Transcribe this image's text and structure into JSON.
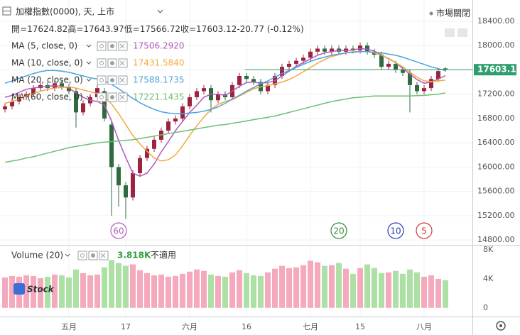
{
  "chart_data": [
    {
      "type": "candlestick",
      "title": "加權指數(0000), 天, 上市",
      "status": "市場關閉",
      "ohlc_labels": [
        "開=",
        "高=",
        "低=",
        "收="
      ],
      "change": "-20.77 (-0.12%)",
      "categories": [
        null,
        null,
        null,
        null,
        null,
        null,
        null,
        null,
        null,
        "五月",
        null,
        null,
        null,
        null,
        null,
        null,
        null,
        "17",
        null,
        null,
        null,
        null,
        null,
        null,
        null,
        null,
        "六月",
        null,
        null,
        null,
        null,
        null,
        null,
        null,
        "16",
        null,
        null,
        null,
        null,
        null,
        null,
        null,
        null,
        "七月",
        null,
        null,
        null,
        null,
        null,
        null,
        "15",
        null,
        null,
        null,
        null,
        null,
        null,
        null,
        null,
        "八月",
        null,
        null,
        null
      ],
      "open": [
        16950,
        17000,
        17080,
        17150,
        17200,
        17300,
        17350,
        17300,
        17380,
        17320,
        17250,
        16900,
        17050,
        17150,
        17250,
        16700,
        16000,
        15700,
        15500,
        15900,
        16150,
        16300,
        16450,
        16600,
        16750,
        16800,
        17000,
        17150,
        17250,
        17300,
        17100,
        17200,
        17150,
        17350,
        17500,
        17450,
        17400,
        17250,
        17350,
        17500,
        17650,
        17700,
        17750,
        17800,
        17900,
        17950,
        17900,
        17950,
        17900,
        17950,
        17920,
        18000,
        17900,
        17850,
        17650,
        17700,
        17600,
        17550,
        17350,
        17250,
        17300,
        17450,
        17624.82
      ],
      "high": [
        17050,
        17130,
        17200,
        17250,
        17350,
        17400,
        17400,
        17430,
        17430,
        17370,
        17300,
        17100,
        17200,
        17350,
        17300,
        16750,
        16050,
        15750,
        15950,
        16200,
        16350,
        16500,
        16650,
        16800,
        16850,
        17050,
        17200,
        17300,
        17350,
        17350,
        17250,
        17250,
        17400,
        17550,
        17550,
        17500,
        17450,
        17400,
        17550,
        17700,
        17750,
        17800,
        17850,
        17950,
        18000,
        18000,
        18000,
        18000,
        18000,
        18000,
        18050,
        18050,
        17950,
        17900,
        17750,
        17750,
        17650,
        17600,
        17400,
        17350,
        17500,
        17620,
        17643.97
      ],
      "low": [
        16900,
        16950,
        17030,
        17100,
        17150,
        17250,
        17250,
        17250,
        17270,
        17200,
        16650,
        16850,
        17000,
        17100,
        16750,
        15200,
        15350,
        15150,
        15450,
        15850,
        16100,
        16250,
        16400,
        16550,
        16700,
        16750,
        16950,
        17100,
        17200,
        16900,
        17050,
        17100,
        17100,
        17300,
        17400,
        17350,
        17200,
        17200,
        17300,
        17450,
        17600,
        17650,
        17700,
        17750,
        17850,
        17850,
        17850,
        17850,
        17850,
        17870,
        17870,
        17850,
        17800,
        17600,
        17600,
        17550,
        17500,
        16900,
        17200,
        17200,
        17250,
        17400,
        17566.72
      ],
      "close": [
        17000,
        17080,
        17150,
        17200,
        17300,
        17350,
        17300,
        17380,
        17320,
        17250,
        16900,
        17050,
        17150,
        17300,
        16800,
        16000,
        15700,
        15500,
        15900,
        16150,
        16300,
        16450,
        16600,
        16750,
        16800,
        17000,
        17150,
        17250,
        17300,
        17100,
        17200,
        17150,
        17350,
        17500,
        17450,
        17400,
        17250,
        17350,
        17500,
        17650,
        17700,
        17750,
        17800,
        17900,
        17950,
        17900,
        17950,
        17900,
        17950,
        17920,
        18000,
        17900,
        17850,
        17650,
        17700,
        17600,
        17550,
        17350,
        17250,
        17300,
        17450,
        17580,
        17603.12
      ],
      "up_color": "#9c2440",
      "down_color": "#2f6b3f",
      "price_line_color": "#2e9e6e",
      "ylim": [
        14720,
        18750
      ],
      "yticks": [
        {
          "value": 14800,
          "label": "14800.00"
        },
        {
          "value": 15200,
          "label": "15200.00"
        },
        {
          "value": 15600,
          "label": "15600.00"
        },
        {
          "value": 16000,
          "label": "16000.00"
        },
        {
          "value": 16400,
          "label": "16400.00"
        },
        {
          "value": 16800,
          "label": "16800.00"
        },
        {
          "value": 17200,
          "label": "17200.00"
        },
        {
          "value": 17600,
          "label": "17600.00"
        },
        {
          "value": 18000,
          "label": "18000.00"
        },
        {
          "value": 18400,
          "label": "18400.00"
        }
      ],
      "grid": true,
      "series": [
        {
          "name": "MA (5, close, 0)",
          "color": "#b259b8",
          "last_label": "17506.2920",
          "values": [
            17150,
            17180,
            17230,
            17280,
            17300,
            17320,
            17330,
            17340,
            17330,
            17300,
            17220,
            17150,
            17100,
            17080,
            17020,
            16760,
            16440,
            16160,
            15900,
            15850,
            15900,
            16050,
            16250,
            16420,
            16600,
            16750,
            16900,
            17020,
            17150,
            17200,
            17200,
            17180,
            17250,
            17330,
            17390,
            17400,
            17380,
            17390,
            17420,
            17500,
            17580,
            17660,
            17720,
            17780,
            17840,
            17880,
            17900,
            17920,
            17920,
            17930,
            17950,
            17940,
            17910,
            17850,
            17780,
            17720,
            17620,
            17530,
            17440,
            17380,
            17400,
            17450,
            17506.29
          ]
        },
        {
          "name": "MA (10, close, 0)",
          "color": "#f2a93b",
          "last_label": "17431.5840",
          "values": [
            17050,
            17080,
            17120,
            17170,
            17210,
            17250,
            17280,
            17300,
            17310,
            17320,
            17300,
            17270,
            17240,
            17210,
            17160,
            17040,
            16880,
            16700,
            16520,
            16380,
            16260,
            16150,
            16100,
            16120,
            16200,
            16350,
            16520,
            16680,
            16820,
            16950,
            17030,
            17080,
            17110,
            17170,
            17230,
            17290,
            17320,
            17340,
            17370,
            17400,
            17440,
            17500,
            17570,
            17640,
            17710,
            17770,
            17820,
            17850,
            17880,
            17900,
            17900,
            17900,
            17880,
            17840,
            17790,
            17720,
            17650,
            17560,
            17480,
            17420,
            17410,
            17420,
            17431.58
          ]
        },
        {
          "name": "MA (20, close, 0)",
          "color": "#4aa3df",
          "last_label": "17588.1735",
          "values": [
            17380,
            17420,
            17460,
            17500,
            17540,
            17570,
            17590,
            17590,
            17580,
            17560,
            17530,
            17500,
            17470,
            17450,
            17420,
            17360,
            17290,
            17210,
            17130,
            17060,
            17000,
            16950,
            16910,
            16890,
            16880,
            16880,
            16890,
            16900,
            16920,
            16950,
            16990,
            17050,
            17120,
            17180,
            17250,
            17310,
            17370,
            17420,
            17480,
            17540,
            17590,
            17640,
            17690,
            17740,
            17780,
            17810,
            17840,
            17860,
            17880,
            17890,
            17900,
            17900,
            17890,
            17880,
            17860,
            17840,
            17810,
            17770,
            17730,
            17690,
            17650,
            17620,
            17588.17
          ]
        },
        {
          "name": "MA (60, close, 0)",
          "color": "#6fbf73",
          "last_label": "17221.1435",
          "values": [
            16080,
            16100,
            16120,
            16150,
            16170,
            16200,
            16230,
            16260,
            16290,
            16320,
            16340,
            16360,
            16380,
            16400,
            16410,
            16420,
            16430,
            16440,
            16450,
            16470,
            16490,
            16510,
            16530,
            16550,
            16570,
            16590,
            16610,
            16630,
            16650,
            16670,
            16690,
            16700,
            16720,
            16740,
            16760,
            16780,
            16800,
            16820,
            16840,
            16870,
            16900,
            16930,
            16960,
            16990,
            17020,
            17050,
            17080,
            17100,
            17120,
            17140,
            17150,
            17160,
            17170,
            17170,
            17170,
            17170,
            17170,
            17170,
            17175,
            17180,
            17190,
            17200,
            17221.14
          ]
        }
      ],
      "markers": [
        {
          "label": "60",
          "color": "#b259b8",
          "index": 16
        },
        {
          "label": "20",
          "color": "#2e8b3a",
          "index": 47
        },
        {
          "label": "10",
          "color": "#2a3fb0",
          "index": 55
        },
        {
          "label": "5",
          "color": "#d03a3a",
          "index": 59
        }
      ]
    },
    {
      "type": "bar",
      "title": "Volume (20)",
      "last_label": "3.818K",
      "note": "不適用",
      "logo": "Stock",
      "values": [
        4.2,
        4.4,
        4.3,
        4.5,
        4.4,
        4.1,
        4.3,
        4.6,
        4.5,
        4.2,
        5.3,
        4.8,
        4.5,
        4.6,
        5.6,
        6.6,
        6.2,
        5.8,
        6.0,
        5.2,
        4.8,
        4.5,
        4.6,
        4.3,
        4.4,
        4.7,
        5.0,
        5.3,
        5.1,
        4.6,
        4.4,
        4.3,
        4.9,
        5.2,
        4.8,
        4.5,
        4.4,
        4.9,
        5.4,
        5.8,
        5.5,
        5.6,
        5.9,
        6.5,
        6.3,
        5.8,
        5.9,
        6.2,
        5.4,
        4.7,
        5.5,
        6.0,
        5.5,
        4.8,
        4.9,
        5.1,
        4.7,
        5.3,
        4.9,
        4.3,
        4.5,
        4.0,
        3.818
      ],
      "up_color": "#f5a9bd",
      "down_color": "#ade0a5",
      "value_color": "#2e9e3e",
      "ylim": [
        -1.2,
        8.6
      ],
      "yticks": [
        0,
        {
          "value": 4,
          "label": "4K"
        },
        {
          "value": 8,
          "label": "8K"
        }
      ]
    }
  ]
}
